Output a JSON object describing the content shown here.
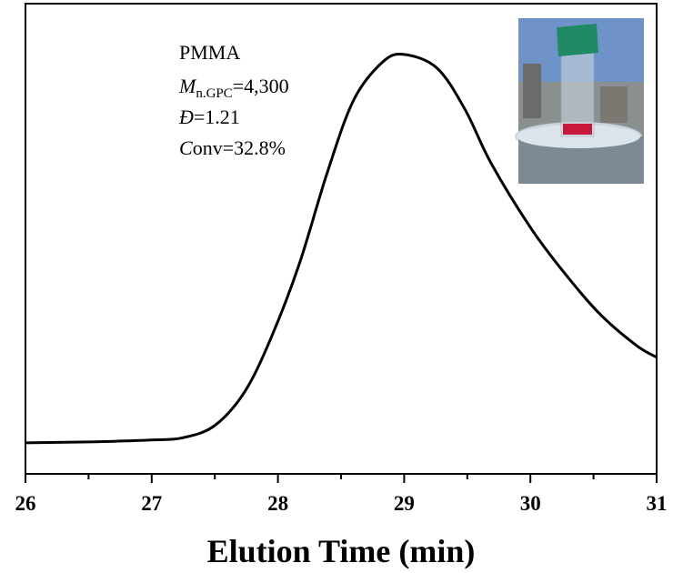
{
  "chart_data": {
    "type": "line",
    "x_label": "Elution Time (min)",
    "annotations": [
      [
        "PMMA"
      ],
      [
        "M",
        "n.GPC",
        "=4,300"
      ],
      [
        "Đ",
        "=1.21"
      ],
      [
        "C",
        "onv=32.8%"
      ]
    ],
    "xlim": [
      26,
      31
    ],
    "xticks": [
      26,
      27,
      28,
      29,
      30,
      31
    ],
    "xticks_minor": [
      26.5,
      27.5,
      28.5,
      29.5,
      30.5
    ],
    "ylim": [
      0,
      1
    ],
    "series": [
      {
        "color": "#000000",
        "x": [
          26.0,
          26.5,
          27.0,
          27.25,
          27.5,
          27.74,
          27.95,
          28.17,
          28.39,
          28.6,
          28.83,
          29.0,
          29.26,
          29.48,
          29.69,
          30.0,
          30.27,
          30.55,
          30.84,
          31.0
        ],
        "values": [
          0.066,
          0.068,
          0.072,
          0.077,
          0.103,
          0.176,
          0.292,
          0.447,
          0.64,
          0.795,
          0.876,
          0.892,
          0.863,
          0.776,
          0.66,
          0.524,
          0.427,
          0.34,
          0.273,
          0.248
        ]
      }
    ]
  }
}
